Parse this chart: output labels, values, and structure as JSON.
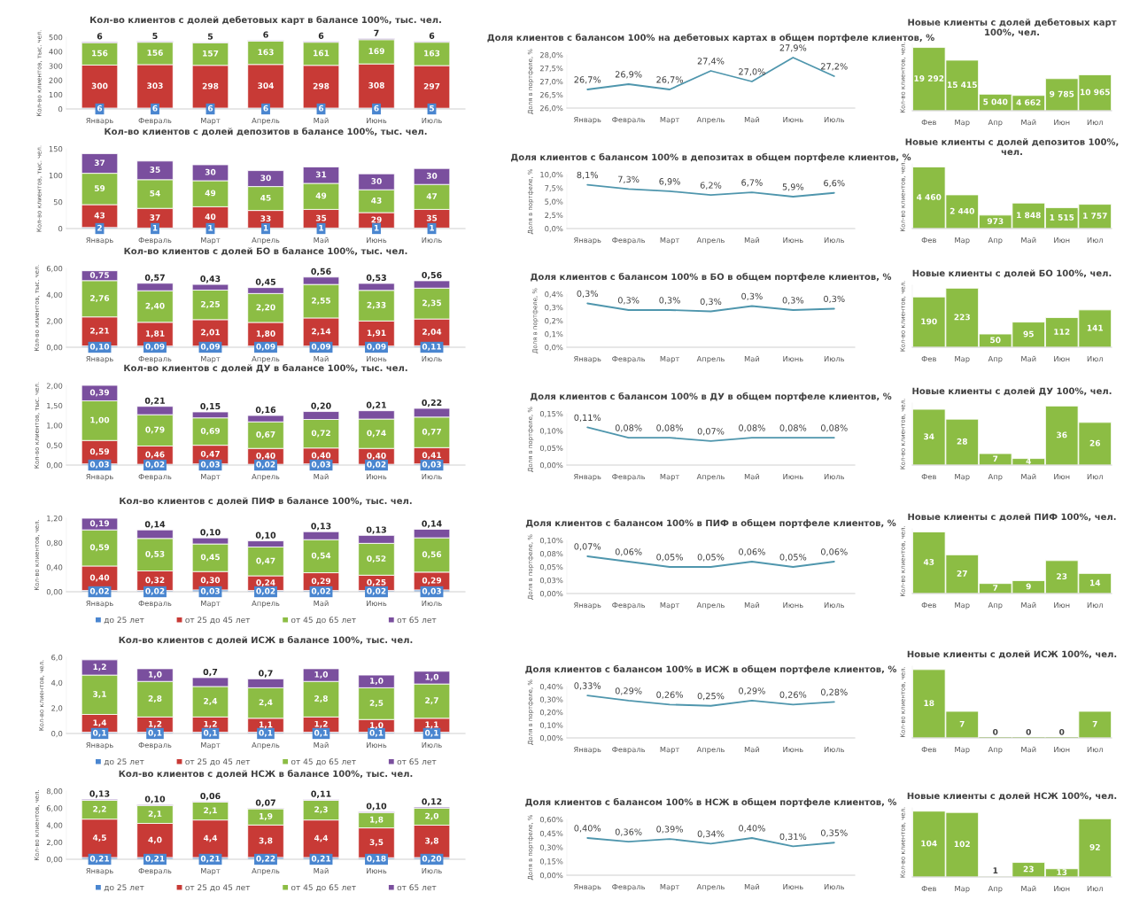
{
  "chart_data": [
    {
      "type": "bar",
      "stacked": true,
      "title": "Кол-во клиентов с долей дебетовых карт в балансе 100%, тыс. чел.",
      "ylabel": "Кол-во клиентов, тыс. чел.",
      "categories": [
        "Январь",
        "Февраль",
        "Март",
        "Апрель",
        "Май",
        "Июнь",
        "Июль"
      ],
      "ylim": [
        0,
        500
      ],
      "yticks": [
        0,
        100,
        200,
        300,
        400,
        500
      ],
      "series": [
        {
          "color": "#4a86d0",
          "values": [
            6,
            6,
            6,
            6,
            6,
            6,
            5
          ],
          "value_labels": [
            "6",
            "6",
            "6",
            "6",
            "6",
            "6",
            "5"
          ]
        },
        {
          "color": "#c83a36",
          "values": [
            300,
            303,
            298,
            304,
            298,
            308,
            297
          ],
          "value_labels": [
            "300",
            "303",
            "298",
            "304",
            "298",
            "308",
            "297"
          ]
        },
        {
          "color": "#8cbd44",
          "values": [
            156,
            156,
            157,
            163,
            161,
            169,
            163
          ],
          "value_labels": [
            "156",
            "156",
            "157",
            "163",
            "161",
            "169",
            "163"
          ]
        },
        {
          "color": "#7a4f9e",
          "values": [
            6,
            5,
            5,
            6,
            6,
            7,
            6
          ],
          "value_labels": [
            "6",
            "5",
            "5",
            "6",
            "6",
            "7",
            "6"
          ]
        }
      ]
    },
    {
      "type": "line",
      "title": "Доля клиентов с балансом 100% на дебетовых картах в общем портфеле клиентов, %",
      "ylabel": "Доля в портфеле, %",
      "categories": [
        "Январь",
        "Февраль",
        "Март",
        "Апрель",
        "Май",
        "Июнь",
        "Июль"
      ],
      "ylim": [
        26,
        28
      ],
      "yticks": [
        {
          "value": 26,
          "label": "26,0%"
        },
        {
          "value": 26.5,
          "label": "26,5%"
        },
        {
          "value": 27,
          "label": "27,0%"
        },
        {
          "value": 27.5,
          "label": "27,5%"
        },
        {
          "value": 28,
          "label": "28,0%"
        }
      ],
      "series": [
        {
          "color": "#4f96ad",
          "values": [
            26.7,
            26.9,
            26.7,
            27.4,
            27.0,
            27.9,
            27.2
          ],
          "value_labels": [
            "26,7%",
            "26,9%",
            "26,7%",
            "27,4%",
            "27,0%",
            "27,9%",
            "27,2%"
          ]
        }
      ]
    },
    {
      "type": "bar",
      "title": "Новые клиенты с долей дебетовых карт 100%, чел.",
      "ylabel": "Кол-во клиентов, чел.",
      "categories": [
        "Фев",
        "Мар",
        "Апр",
        "Май",
        "Июн",
        "Июл"
      ],
      "tick_labels": "x",
      "series": [
        {
          "color": "#8cbd44",
          "values": [
            19292,
            15415,
            5040,
            4662,
            9785,
            10965
          ],
          "value_labels": [
            "19 292",
            "15 415",
            "5 040",
            "4 662",
            "9 785",
            "10 965"
          ]
        }
      ]
    },
    {
      "type": "bar",
      "stacked": true,
      "title": "Кол-во клиентов с долей депозитов в балансе 100%, тыс. чел.",
      "ylabel": "Кол-во клиентов, тыс. чел.",
      "categories": [
        "Январь",
        "Февраль",
        "Март",
        "Апрель",
        "Май",
        "Июнь",
        "Июль"
      ],
      "ylim": [
        0,
        150
      ],
      "yticks": [
        0,
        50,
        100,
        150
      ],
      "series": [
        {
          "color": "#4a86d0",
          "values": [
            2,
            1,
            1,
            1,
            1,
            1,
            1
          ],
          "value_labels": [
            "2",
            "1",
            "1",
            "1",
            "1",
            "1",
            "1"
          ]
        },
        {
          "color": "#c83a36",
          "values": [
            43,
            37,
            40,
            33,
            35,
            29,
            35
          ],
          "value_labels": [
            "43",
            "37",
            "40",
            "33",
            "35",
            "29",
            "35"
          ]
        },
        {
          "color": "#8cbd44",
          "values": [
            59,
            54,
            49,
            45,
            49,
            43,
            47
          ],
          "value_labels": [
            "59",
            "54",
            "49",
            "45",
            "49",
            "43",
            "47"
          ]
        },
        {
          "color": "#7a4f9e",
          "values": [
            37,
            35,
            30,
            30,
            31,
            30,
            30
          ],
          "value_labels": [
            "37",
            "35",
            "30",
            "30",
            "31",
            "30",
            "30"
          ]
        }
      ]
    },
    {
      "type": "line",
      "title": "Доля клиентов с балансом 100% в депозитах в общем портфеле клиентов, %",
      "ylabel": "Доля в портфеле, %",
      "categories": [
        "Январь",
        "Февраль",
        "Март",
        "Апрель",
        "Май",
        "Июнь",
        "Июль"
      ],
      "ylim": [
        0,
        10
      ],
      "yticks": [
        {
          "value": 0,
          "label": "0,0%"
        },
        {
          "value": 2.5,
          "label": "2,5%"
        },
        {
          "value": 5,
          "label": "5,0%"
        },
        {
          "value": 7.5,
          "label": "7,5%"
        },
        {
          "value": 10,
          "label": "10,0%"
        }
      ],
      "series": [
        {
          "color": "#4f96ad",
          "values": [
            8.1,
            7.3,
            6.9,
            6.2,
            6.7,
            5.9,
            6.6
          ],
          "value_labels": [
            "8,1%",
            "7,3%",
            "6,9%",
            "6,2%",
            "6,7%",
            "5,9%",
            "6,6%"
          ]
        }
      ]
    },
    {
      "type": "bar",
      "title": "Новые клиенты с долей депозитов 100%, чел.",
      "ylabel": "Кол-во клиентов, чел.",
      "categories": [
        "Фев",
        "Мар",
        "Апр",
        "Май",
        "Июн",
        "Июл"
      ],
      "tick_labels": "x",
      "series": [
        {
          "color": "#8cbd44",
          "values": [
            4460,
            2440,
            973,
            1848,
            1515,
            1757
          ],
          "value_labels": [
            "4 460",
            "2 440",
            "973",
            "1 848",
            "1 515",
            "1 757"
          ]
        }
      ]
    },
    {
      "type": "bar",
      "stacked": true,
      "title": "Кол-во клиентов с долей БО в балансе 100%, тыс. чел.",
      "ylabel": "Кол-во клиентов, тыс. чел.",
      "categories": [
        "Январь",
        "Февраль",
        "Март",
        "Апрель",
        "Май",
        "Июнь",
        "Июль"
      ],
      "ylim": [
        0,
        6
      ],
      "yticks": [
        {
          "value": 0,
          "label": "0,00"
        },
        {
          "value": 2,
          "label": "2,00"
        },
        {
          "value": 4,
          "label": "4,00"
        },
        {
          "value": 6,
          "label": "6,00"
        }
      ],
      "series": [
        {
          "color": "#4a86d0",
          "values": [
            0.1,
            0.09,
            0.09,
            0.09,
            0.09,
            0.09,
            0.11
          ],
          "value_labels": [
            "0,10",
            "0,09",
            "0,09",
            "0,09",
            "0,09",
            "0,09",
            "0,11"
          ]
        },
        {
          "color": "#c83a36",
          "values": [
            2.21,
            1.81,
            2.01,
            1.8,
            2.14,
            1.91,
            2.04
          ],
          "value_labels": [
            "2,21",
            "1,81",
            "2,01",
            "1,80",
            "2,14",
            "1,91",
            "2,04"
          ]
        },
        {
          "color": "#8cbd44",
          "values": [
            2.76,
            2.4,
            2.25,
            2.2,
            2.55,
            2.33,
            2.35
          ],
          "value_labels": [
            "2,76",
            "2,40",
            "2,25",
            "2,20",
            "2,55",
            "2,33",
            "2,35"
          ]
        },
        {
          "color": "#7a4f9e",
          "values": [
            0.75,
            0.57,
            0.43,
            0.45,
            0.56,
            0.53,
            0.56
          ],
          "value_labels": [
            "0,75",
            "0,57",
            "0,43",
            "0,45",
            "0,56",
            "0,53",
            "0,56"
          ]
        }
      ]
    },
    {
      "type": "line",
      "title": "Доля клиентов с балансом 100% в БО в общем портфеле клиентов, %",
      "ylabel": "Доля в портфеле, %",
      "categories": [
        "Январь",
        "Февраль",
        "Март",
        "Апрель",
        "Май",
        "Июнь",
        "Июль"
      ],
      "ylim": [
        0,
        0.4
      ],
      "yticks": [
        {
          "value": 0,
          "label": "0,0%"
        },
        {
          "value": 0.1,
          "label": "0,1%"
        },
        {
          "value": 0.2,
          "label": "0,2%"
        },
        {
          "value": 0.3,
          "label": "0,3%"
        },
        {
          "value": 0.4,
          "label": "0,4%"
        }
      ],
      "series": [
        {
          "color": "#4f96ad",
          "values": [
            0.33,
            0.28,
            0.28,
            0.27,
            0.31,
            0.28,
            0.29
          ],
          "value_labels": [
            "0,3%",
            "0,3%",
            "0,3%",
            "0,3%",
            "0,3%",
            "0,3%",
            "0,3%"
          ]
        }
      ]
    },
    {
      "type": "bar",
      "title": "Новые клиенты с долей БО 100%, чел.",
      "ylabel": "Кол-во клиентов, чел.",
      "categories": [
        "Фев",
        "Мар",
        "Апр",
        "Май",
        "Июн",
        "Июл"
      ],
      "tick_labels": "x",
      "series": [
        {
          "color": "#8cbd44",
          "values": [
            190,
            223,
            50,
            95,
            112,
            141
          ],
          "value_labels": [
            "190",
            "223",
            "50",
            "95",
            "112",
            "141"
          ]
        }
      ]
    },
    {
      "type": "bar",
      "stacked": true,
      "title": "Кол-во клиентов с долей ДУ в балансе 100%, тыс. чел.",
      "ylabel": "Кол-во клиентов, тыс. чел.",
      "categories": [
        "Январь",
        "Февраль",
        "Март",
        "Апрель",
        "Май",
        "Июнь",
        "Июль"
      ],
      "ylim": [
        0,
        2.01
      ],
      "yticks": [
        {
          "value": 0,
          "label": "0,00"
        },
        {
          "value": 0.5,
          "label": "0,50"
        },
        {
          "value": 1,
          "label": "1,00"
        },
        {
          "value": 1.5,
          "label": "1,50"
        },
        {
          "value": 2,
          "label": "2,00"
        }
      ],
      "series": [
        {
          "color": "#4a86d0",
          "values": [
            0.03,
            0.02,
            0.03,
            0.02,
            0.03,
            0.02,
            0.03
          ],
          "value_labels": [
            "0,03",
            "0,02",
            "0,03",
            "0,02",
            "0,03",
            "0,02",
            "0,03"
          ]
        },
        {
          "color": "#c83a36",
          "values": [
            0.59,
            0.46,
            0.47,
            0.4,
            0.4,
            0.4,
            0.41
          ],
          "value_labels": [
            "0,59",
            "0,46",
            "0,47",
            "0,40",
            "0,40",
            "0,40",
            "0,41"
          ]
        },
        {
          "color": "#8cbd44",
          "values": [
            1.0,
            0.79,
            0.69,
            0.67,
            0.72,
            0.74,
            0.77
          ],
          "value_labels": [
            "1,00",
            "0,79",
            "0,69",
            "0,67",
            "0,72",
            "0,74",
            "0,77"
          ]
        },
        {
          "color": "#7a4f9e",
          "values": [
            0.39,
            0.21,
            0.15,
            0.16,
            0.2,
            0.21,
            0.22
          ],
          "value_labels": [
            "0,39",
            "0,21",
            "0,15",
            "0,16",
            "0,20",
            "0,21",
            "0,22"
          ]
        }
      ]
    },
    {
      "type": "line",
      "title": "Доля клиентов с балансом 100% в ДУ в общем портфеле клиентов, %",
      "ylabel": "Доля в портфеле, %",
      "categories": [
        "Январь",
        "Февраль",
        "Март",
        "Апрель",
        "Май",
        "Июнь",
        "Июль"
      ],
      "ylim": [
        0,
        0.15
      ],
      "yticks": [
        {
          "value": 0,
          "label": "0,00%"
        },
        {
          "value": 0.05,
          "label": "0,05%"
        },
        {
          "value": 0.1,
          "label": "0,10%"
        },
        {
          "value": 0.15,
          "label": "0,15%"
        }
      ],
      "series": [
        {
          "color": "#4f96ad",
          "values": [
            0.11,
            0.08,
            0.08,
            0.07,
            0.08,
            0.08,
            0.08
          ],
          "value_labels": [
            "0,11%",
            "0,08%",
            "0,08%",
            "0,07%",
            "0,08%",
            "0,08%",
            "0,08%"
          ]
        }
      ]
    },
    {
      "type": "bar",
      "title": "Новые клиенты с долей ДУ 100%, чел.",
      "ylabel": "Кол-во клиентов, чел.",
      "categories": [
        "Фев",
        "Мар",
        "Апр",
        "Май",
        "Июн",
        "Июл"
      ],
      "tick_labels": "x",
      "series": [
        {
          "color": "#8cbd44",
          "values": [
            34,
            28,
            7,
            4,
            36,
            26
          ],
          "value_labels": [
            "34",
            "28",
            "7",
            "4",
            "36",
            "26"
          ]
        }
      ]
    },
    {
      "type": "bar",
      "stacked": true,
      "legend": "bottom",
      "title": "Кол-во клиентов с долей ПИФ в балансе 100%, тыс. чел.",
      "ylabel": "Кол-во клиентов, чел.",
      "categories": [
        "Январь",
        "Февраль",
        "Март",
        "Апрель",
        "Май",
        "Июнь",
        "Июль"
      ],
      "ylim": [
        0,
        1.2
      ],
      "yticks": [
        {
          "value": 0,
          "label": "0,00"
        },
        {
          "value": 0.4,
          "label": "0,40"
        },
        {
          "value": 0.8,
          "label": "0,80"
        },
        {
          "value": 1.2,
          "label": "1,20"
        }
      ],
      "series": [
        {
          "name": "до 25 лет",
          "color": "#4a86d0",
          "values": [
            0.02,
            0.02,
            0.03,
            0.02,
            0.02,
            0.02,
            0.03
          ],
          "value_labels": [
            "0,02",
            "0,02",
            "0,03",
            "0,02",
            "0,02",
            "0,02",
            "0,03"
          ]
        },
        {
          "name": "от 25 до 45 лет",
          "color": "#c83a36",
          "values": [
            0.4,
            0.32,
            0.3,
            0.24,
            0.29,
            0.25,
            0.29
          ],
          "value_labels": [
            "0,40",
            "0,32",
            "0,30",
            "0,24",
            "0,29",
            "0,25",
            "0,29"
          ]
        },
        {
          "name": "от 45 до 65 лет",
          "color": "#8cbd44",
          "values": [
            0.59,
            0.53,
            0.45,
            0.47,
            0.54,
            0.52,
            0.56
          ],
          "value_labels": [
            "0,59",
            "0,53",
            "0,45",
            "0,47",
            "0,54",
            "0,52",
            "0,56"
          ]
        },
        {
          "name": "от 65 лет",
          "color": "#7a4f9e",
          "values": [
            0.19,
            0.14,
            0.1,
            0.1,
            0.13,
            0.13,
            0.14
          ],
          "value_labels": [
            "0,19",
            "0,14",
            "0,10",
            "0,10",
            "0,13",
            "0,13",
            "0,14"
          ]
        }
      ]
    },
    {
      "type": "line",
      "title": "Доля клиентов с балансом 100% в ПИФ в общем портфеле клиентов, %",
      "ylabel": "Доля в портфеле, %",
      "categories": [
        "Январь",
        "Февраль",
        "Март",
        "Апрель",
        "Май",
        "Июнь",
        "Июль"
      ],
      "ylim": [
        0,
        0.1
      ],
      "yticks": [
        {
          "value": 0,
          "label": "0,00%"
        },
        {
          "value": 0.025,
          "label": "0,03%"
        },
        {
          "value": 0.05,
          "label": "0,05%"
        },
        {
          "value": 0.075,
          "label": "0,08%"
        },
        {
          "value": 0.1,
          "label": "0,10%"
        }
      ],
      "series": [
        {
          "color": "#4f96ad",
          "values": [
            0.07,
            0.06,
            0.05,
            0.05,
            0.06,
            0.05,
            0.06
          ],
          "value_labels": [
            "0,07%",
            "0,06%",
            "0,05%",
            "0,05%",
            "0,06%",
            "0,05%",
            "0,06%"
          ]
        }
      ]
    },
    {
      "type": "bar",
      "title": "Новые клиенты с долей ПИФ 100%, чел.",
      "ylabel": "Кол-во клиентов, чел.",
      "categories": [
        "Фев",
        "Мар",
        "Апр",
        "Май",
        "Июн",
        "Июл"
      ],
      "tick_labels": "x",
      "series": [
        {
          "color": "#8cbd44",
          "values": [
            43,
            27,
            7,
            9,
            23,
            14
          ],
          "value_labels": [
            "43",
            "27",
            "7",
            "9",
            "23",
            "14"
          ]
        }
      ]
    },
    {
      "type": "bar",
      "stacked": true,
      "legend": "bottom",
      "title": "Кол-во клиентов с долей ИСЖ в балансе 100%, тыс. чел.",
      "ylabel": "Кол-во клиентов, чел.",
      "categories": [
        "Январь",
        "Февраль",
        "Март",
        "Апрель",
        "Май",
        "Июнь",
        "Июль"
      ],
      "ylim": [
        0,
        6
      ],
      "yticks": [
        {
          "value": 0,
          "label": "0,0"
        },
        {
          "value": 2,
          "label": "2,0"
        },
        {
          "value": 4,
          "label": "4,0"
        },
        {
          "value": 6,
          "label": "6,0"
        }
      ],
      "series": [
        {
          "name": "до 25 лет",
          "color": "#4a86d0",
          "values": [
            0.1,
            0.1,
            0.1,
            0.1,
            0.1,
            0.1,
            0.1
          ],
          "value_labels": [
            "0,1",
            "0,1",
            "0,1",
            "0,1",
            "0,1",
            "0,1",
            "0,1"
          ]
        },
        {
          "name": "от 25 до 45 лет",
          "color": "#c83a36",
          "values": [
            1.4,
            1.2,
            1.2,
            1.1,
            1.2,
            1.0,
            1.1
          ],
          "value_labels": [
            "1,4",
            "1,2",
            "1,2",
            "1,1",
            "1,2",
            "1,0",
            "1,1"
          ]
        },
        {
          "name": "от 45 до 65 лет",
          "color": "#8cbd44",
          "values": [
            3.1,
            2.8,
            2.4,
            2.4,
            2.8,
            2.5,
            2.7
          ],
          "value_labels": [
            "3,1",
            "2,8",
            "2,4",
            "2,4",
            "2,8",
            "2,5",
            "2,7"
          ]
        },
        {
          "name": "от 65 лет",
          "color": "#7a4f9e",
          "values": [
            1.2,
            1.0,
            0.7,
            0.7,
            1.0,
            1.0,
            1.0
          ],
          "value_labels": [
            "1,2",
            "1,0",
            "0,7",
            "0,7",
            "1,0",
            "1,0",
            "1,0"
          ]
        }
      ]
    },
    {
      "type": "line",
      "title": "Доля клиентов с балансом 100% в ИСЖ в общем портфеле клиентов, %",
      "ylabel": "Доля в портфеле, %",
      "categories": [
        "Январь",
        "Февраль",
        "Март",
        "Апрель",
        "Май",
        "Июнь",
        "Июль"
      ],
      "ylim": [
        0,
        0.4
      ],
      "yticks": [
        {
          "value": 0,
          "label": "0,00%"
        },
        {
          "value": 0.1,
          "label": "0,10%"
        },
        {
          "value": 0.2,
          "label": "0,20%"
        },
        {
          "value": 0.3,
          "label": "0,30%"
        },
        {
          "value": 0.4,
          "label": "0,40%"
        }
      ],
      "series": [
        {
          "color": "#4f96ad",
          "values": [
            0.33,
            0.29,
            0.26,
            0.25,
            0.29,
            0.26,
            0.28
          ],
          "value_labels": [
            "0,33%",
            "0,29%",
            "0,26%",
            "0,25%",
            "0,29%",
            "0,26%",
            "0,28%"
          ]
        }
      ]
    },
    {
      "type": "bar",
      "title": "Новые клиенты с долей ИСЖ 100%, чел.",
      "ylabel": "Кол-во клиентов, чел.",
      "categories": [
        "Фев",
        "Мар",
        "Апр",
        "Май",
        "Июн",
        "Июл"
      ],
      "tick_labels": "x",
      "series": [
        {
          "color": "#8cbd44",
          "values": [
            18,
            7,
            0,
            0,
            0,
            7
          ],
          "value_labels": [
            "18",
            "7",
            "0",
            "0",
            "0",
            "7"
          ]
        }
      ]
    },
    {
      "type": "bar",
      "stacked": true,
      "legend": "bottom",
      "title": "Кол-во клиентов с долей НСЖ в балансе 100%, тыс. чел.",
      "ylabel": "Кол-во клиентов, чел.",
      "categories": [
        "Январь",
        "Февраль",
        "Март",
        "Апрель",
        "Май",
        "Июнь",
        "Июль"
      ],
      "ylim": [
        0,
        8
      ],
      "yticks": [
        {
          "value": 0,
          "label": "0,00"
        },
        {
          "value": 2,
          "label": "2,00"
        },
        {
          "value": 4,
          "label": "4,00"
        },
        {
          "value": 6,
          "label": "6,00"
        },
        {
          "value": 8,
          "label": "8,00"
        }
      ],
      "series": [
        {
          "name": "до 25 лет",
          "color": "#4a86d0",
          "values": [
            0.21,
            0.21,
            0.21,
            0.22,
            0.21,
            0.18,
            0.2
          ],
          "value_labels": [
            "0,21",
            "0,21",
            "0,21",
            "0,22",
            "0,21",
            "0,18",
            "0,20"
          ]
        },
        {
          "name": "от 25 до 45 лет",
          "color": "#c83a36",
          "values": [
            4.5,
            4.0,
            4.4,
            3.8,
            4.4,
            3.5,
            3.8
          ],
          "value_labels": [
            "4,5",
            "4,0",
            "4,4",
            "3,8",
            "4,4",
            "3,5",
            "3,8"
          ]
        },
        {
          "name": "от 45 до 65 лет",
          "color": "#8cbd44",
          "values": [
            2.2,
            2.1,
            2.1,
            1.9,
            2.3,
            1.8,
            2.0
          ],
          "value_labels": [
            "2,2",
            "2,1",
            "2,1",
            "1,9",
            "2,3",
            "1,8",
            "2,0"
          ]
        },
        {
          "name": "от 65 лет",
          "color": "#7a4f9e",
          "values": [
            0.13,
            0.1,
            0.06,
            0.07,
            0.11,
            0.1,
            0.12
          ],
          "value_labels": [
            "0,13",
            "0,10",
            "0,06",
            "0,07",
            "0,11",
            "0,10",
            "0,12"
          ]
        }
      ]
    },
    {
      "type": "line",
      "title": "Доля клиентов с балансом 100% в НСЖ в общем портфеле клиентов, %",
      "ylabel": "Доля в портфеле, %",
      "categories": [
        "Январь",
        "Февраль",
        "Март",
        "Апрель",
        "Май",
        "Июнь",
        "Июль"
      ],
      "ylim": [
        0,
        0.6
      ],
      "yticks": [
        {
          "value": 0,
          "label": "0,00%"
        },
        {
          "value": 0.15,
          "label": "0,15%"
        },
        {
          "value": 0.3,
          "label": "0,30%"
        },
        {
          "value": 0.45,
          "label": "0,45%"
        },
        {
          "value": 0.6,
          "label": "0,60%"
        }
      ],
      "series": [
        {
          "color": "#4f96ad",
          "values": [
            0.4,
            0.36,
            0.39,
            0.34,
            0.4,
            0.31,
            0.35
          ],
          "value_labels": [
            "0,40%",
            "0,36%",
            "0,39%",
            "0,34%",
            "0,40%",
            "0,31%",
            "0,35%"
          ]
        }
      ]
    },
    {
      "type": "bar",
      "title": "Новые клиенты с долей НСЖ 100%, чел.",
      "ylabel": "Кол-во клиентов, чел.",
      "categories": [
        "Фев",
        "Мар",
        "Апр",
        "Май",
        "Июн",
        "Июл"
      ],
      "tick_labels": "x",
      "series": [
        {
          "color": "#8cbd44",
          "values": [
            104,
            102,
            1,
            23,
            13,
            92
          ],
          "value_labels": [
            "104",
            "102",
            "1",
            "23",
            "13",
            "92"
          ]
        }
      ]
    }
  ]
}
